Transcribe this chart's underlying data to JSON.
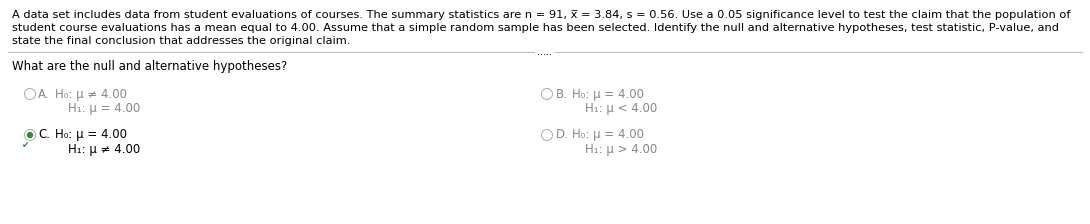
{
  "bg_color": "#ffffff",
  "text_color": "#000000",
  "gray_color": "#888888",
  "green_color": "#2d8a2d",
  "paragraph1": "A data set includes data from student evaluations of courses. The summary statistics are n = 91, x̅ = 3.84, s = 0.56. Use a 0.05 significance level to test the claim that the population of",
  "paragraph2": "student course evaluations has a mean equal to 4.00. Assume that a simple random sample has been selected. Identify the null and alternative hypotheses, test statistic, P-value, and",
  "paragraph3": "state the final conclusion that addresses the original claim.",
  "question": "What are the null and alternative hypotheses?",
  "optA_label": "A.",
  "optA_line1": "H₀: μ ≠ 4.00",
  "optA_line2": "H₁: μ = 4.00",
  "optB_label": "B.",
  "optB_line1": "H₀: μ = 4.00",
  "optB_line2": "H₁: μ < 4.00",
  "optC_label": "C.",
  "optC_line1": "H₀: μ = 4.00",
  "optC_line2": "H₁: μ ≠ 4.00",
  "optD_label": "D.",
  "optD_line1": "H₀: μ = 4.00",
  "optD_line2": "H₁: μ > 4.00",
  "separator_dots": ".....",
  "font_size_para": 8.2,
  "font_size_question": 8.5,
  "font_size_options": 8.5
}
